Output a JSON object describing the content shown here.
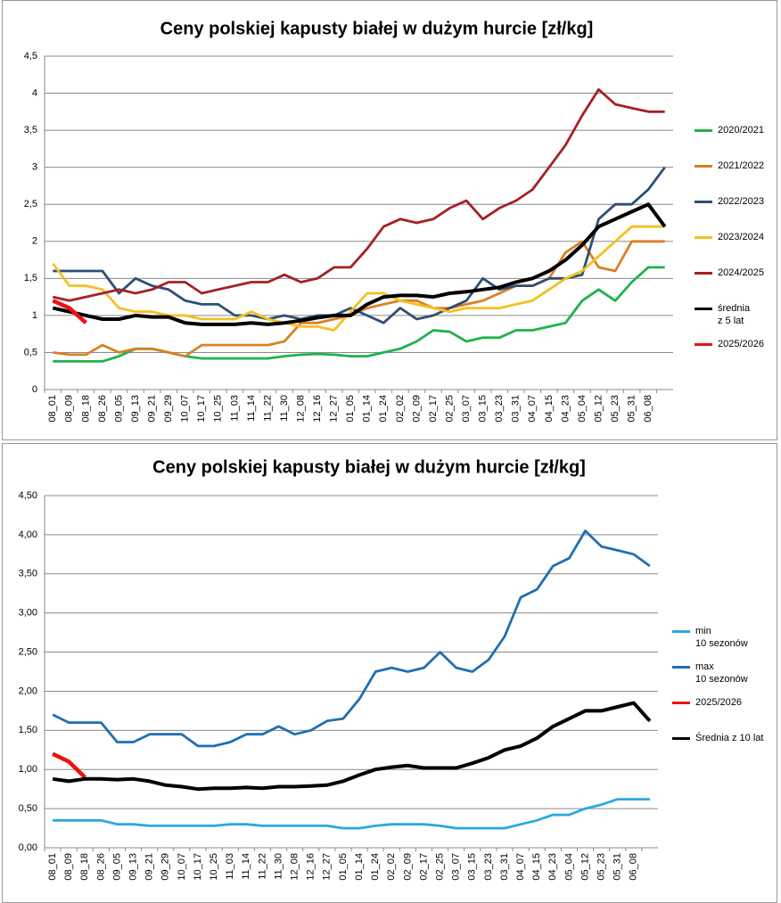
{
  "chart_data": [
    {
      "type": "line",
      "title": "Ceny polskiej kapusty białej w dużym hurcie [zł/kg]",
      "categories": [
        "08_01",
        "08_09",
        "08_18",
        "08_26",
        "09_05",
        "09_13",
        "09_21",
        "09_29",
        "10_07",
        "10_17",
        "10_25",
        "11_03",
        "11_14",
        "11_22",
        "11_30",
        "12_08",
        "12_16",
        "12_27",
        "01_05",
        "01_14",
        "01_24",
        "02_02",
        "02_09",
        "02_17",
        "02_25",
        "03_07",
        "03_15",
        "03_23",
        "03_31",
        "04_07",
        "04_15",
        "04_23",
        "05_04",
        "05_12",
        "05_23",
        "05_31",
        "06_08",
        null
      ],
      "ylim": [
        0,
        4.5
      ],
      "yticks": [
        0,
        {
          "value": 0.5,
          "label": "0,5"
        },
        1,
        {
          "value": 1.5,
          "label": "1,5"
        },
        2,
        {
          "value": 2.5,
          "label": "2,5"
        },
        3,
        {
          "value": 3.5,
          "label": "3,5"
        },
        4,
        {
          "value": 4.5,
          "label": "4,5"
        }
      ],
      "grid": true,
      "series": [
        {
          "name": "2020/2021",
          "color": "#1fb24a",
          "values": [
            0.38,
            0.38,
            0.38,
            0.38,
            0.45,
            0.55,
            0.55,
            0.5,
            0.45,
            0.42,
            0.42,
            0.42,
            0.42,
            0.42,
            0.45,
            0.47,
            0.48,
            0.47,
            0.45,
            0.45,
            0.5,
            0.55,
            0.65,
            0.8,
            0.78,
            0.65,
            0.7,
            0.7,
            0.8,
            0.8,
            0.85,
            0.9,
            1.2,
            1.35,
            1.2,
            1.45,
            1.65,
            1.65
          ]
        },
        {
          "name": "2021/2022",
          "color": "#d98026",
          "values": [
            0.5,
            0.47,
            0.47,
            0.6,
            0.5,
            0.55,
            0.55,
            0.5,
            0.45,
            0.6,
            0.6,
            0.6,
            0.6,
            0.6,
            0.65,
            0.9,
            0.9,
            0.95,
            1.0,
            1.1,
            1.15,
            1.2,
            1.2,
            1.1,
            1.1,
            1.15,
            1.2,
            1.3,
            1.4,
            1.4,
            1.5,
            1.85,
            2.0,
            1.65,
            1.6,
            2.0,
            2.0,
            2.0
          ]
        },
        {
          "name": "2022/2023",
          "color": "#2e4f73",
          "values": [
            1.6,
            1.6,
            1.6,
            1.6,
            1.3,
            1.5,
            1.4,
            1.35,
            1.2,
            1.15,
            1.15,
            1.0,
            1.0,
            0.95,
            1.0,
            0.95,
            1.0,
            1.0,
            1.1,
            1.0,
            0.9,
            1.1,
            0.95,
            1.0,
            1.1,
            1.2,
            1.5,
            1.35,
            1.4,
            1.4,
            1.5,
            1.5,
            1.55,
            2.3,
            2.5,
            2.5,
            2.7,
            3.0
          ]
        },
        {
          "name": "2023/2024",
          "color": "#f5c020",
          "values": [
            1.7,
            1.4,
            1.4,
            1.35,
            1.1,
            1.05,
            1.05,
            1.0,
            1.0,
            0.95,
            0.95,
            0.95,
            1.05,
            0.95,
            0.9,
            0.85,
            0.85,
            0.8,
            1.05,
            1.3,
            1.3,
            1.2,
            1.15,
            1.1,
            1.05,
            1.1,
            1.1,
            1.1,
            1.15,
            1.2,
            1.35,
            1.5,
            1.6,
            1.8,
            2.0,
            2.2,
            2.2,
            2.2
          ]
        },
        {
          "name": "2024/2025",
          "color": "#a52024",
          "values": [
            1.25,
            1.2,
            1.25,
            1.3,
            1.35,
            1.3,
            1.35,
            1.45,
            1.45,
            1.3,
            1.35,
            1.4,
            1.45,
            1.45,
            1.55,
            1.45,
            1.5,
            1.65,
            1.65,
            1.9,
            2.2,
            2.3,
            2.25,
            2.3,
            2.45,
            2.55,
            2.3,
            2.45,
            2.55,
            2.7,
            3.0,
            3.3,
            3.7,
            4.05,
            3.85,
            3.8,
            3.75,
            3.75
          ]
        },
        {
          "name": "średnia\nz 5 lat",
          "color": "#000000",
          "values": [
            1.1,
            1.05,
            1.0,
            0.95,
            0.95,
            1.0,
            0.98,
            0.98,
            0.9,
            0.88,
            0.88,
            0.88,
            0.9,
            0.88,
            0.9,
            0.93,
            0.97,
            1.0,
            1.0,
            1.15,
            1.25,
            1.27,
            1.27,
            1.25,
            1.3,
            1.32,
            1.35,
            1.38,
            1.45,
            1.5,
            1.6,
            1.75,
            1.95,
            2.2,
            2.3,
            2.4,
            2.5,
            2.2
          ]
        },
        {
          "name": "2025/2026",
          "color": "#ee1111",
          "values": [
            1.2,
            1.1,
            0.9,
            null,
            null,
            null,
            null,
            null,
            null,
            null,
            null,
            null,
            null,
            null,
            null,
            null,
            null,
            null,
            null,
            null,
            null,
            null,
            null,
            null,
            null,
            null,
            null,
            null,
            null,
            null,
            null,
            null,
            null,
            null,
            null,
            null,
            null,
            null
          ]
        }
      ]
    },
    {
      "type": "line",
      "title": "Ceny polskiej kapusty białej w dużym hurcie [zł/kg]",
      "categories": [
        "08_01",
        "08_09",
        "08_18",
        "08_26",
        "09_05",
        "09_13",
        "09_21",
        "09_29",
        "10_07",
        "10_17",
        "10_25",
        "11_03",
        "11_14",
        "11_22",
        "11_30",
        "12_08",
        "12_16",
        "12_27",
        "01_05",
        "01_14",
        "01_24",
        "02_02",
        "02_09",
        "02_17",
        "02_25",
        "03_07",
        "03_15",
        "03_23",
        "03_31",
        "04_07",
        "04_15",
        "04_23",
        "05_04",
        "05_12",
        "05_23",
        "05_31",
        "06_08",
        null
      ],
      "ylim": [
        0,
        4.5
      ],
      "yticks": [
        {
          "value": 0,
          "label": "0,00"
        },
        {
          "value": 0.5,
          "label": "0,50"
        },
        {
          "value": 1,
          "label": "1,00"
        },
        {
          "value": 1.5,
          "label": "1,50"
        },
        {
          "value": 2,
          "label": "2,00"
        },
        {
          "value": 2.5,
          "label": "2,50"
        },
        {
          "value": 3,
          "label": "3,00"
        },
        {
          "value": 3.5,
          "label": "3,50"
        },
        {
          "value": 4,
          "label": "4,00"
        },
        {
          "value": 4.5,
          "label": "4,50"
        }
      ],
      "grid": true,
      "series": [
        {
          "name": "min\n10 sezonów",
          "color": "#2aa8e0",
          "values": [
            0.35,
            0.35,
            0.35,
            0.35,
            0.3,
            0.3,
            0.28,
            0.28,
            0.28,
            0.28,
            0.28,
            0.3,
            0.3,
            0.28,
            0.28,
            0.28,
            0.28,
            0.28,
            0.25,
            0.25,
            0.28,
            0.3,
            0.3,
            0.3,
            0.28,
            0.25,
            0.25,
            0.25,
            0.25,
            0.3,
            0.35,
            0.42,
            0.42,
            0.5,
            0.55,
            0.62,
            0.62,
            0.62
          ]
        },
        {
          "name": "max\n10 sezonów",
          "color": "#1f6fb2",
          "values": [
            1.7,
            1.6,
            1.6,
            1.6,
            1.35,
            1.35,
            1.45,
            1.45,
            1.45,
            1.3,
            1.3,
            1.35,
            1.45,
            1.45,
            1.55,
            1.45,
            1.5,
            1.62,
            1.65,
            1.9,
            2.25,
            2.3,
            2.25,
            2.3,
            2.5,
            2.3,
            2.25,
            2.4,
            2.7,
            3.2,
            3.3,
            3.6,
            3.7,
            4.05,
            3.85,
            3.8,
            3.75,
            3.6
          ]
        },
        {
          "name": "2025/2026",
          "color": "#ee1111",
          "values": [
            1.2,
            1.1,
            0.9,
            null,
            null,
            null,
            null,
            null,
            null,
            null,
            null,
            null,
            null,
            null,
            null,
            null,
            null,
            null,
            null,
            null,
            null,
            null,
            null,
            null,
            null,
            null,
            null,
            null,
            null,
            null,
            null,
            null,
            null,
            null,
            null,
            null,
            null,
            null
          ]
        },
        {
          "name": "Średnia z 10 lat",
          "color": "#000000",
          "values": [
            0.88,
            0.85,
            0.88,
            0.88,
            0.87,
            0.88,
            0.85,
            0.8,
            0.78,
            0.75,
            0.76,
            0.76,
            0.77,
            0.76,
            0.78,
            0.78,
            0.79,
            0.8,
            0.85,
            0.93,
            1.0,
            1.03,
            1.05,
            1.02,
            1.02,
            1.02,
            1.08,
            1.15,
            1.25,
            1.3,
            1.4,
            1.55,
            1.65,
            1.75,
            1.75,
            1.8,
            1.85,
            1.62
          ]
        }
      ]
    }
  ]
}
